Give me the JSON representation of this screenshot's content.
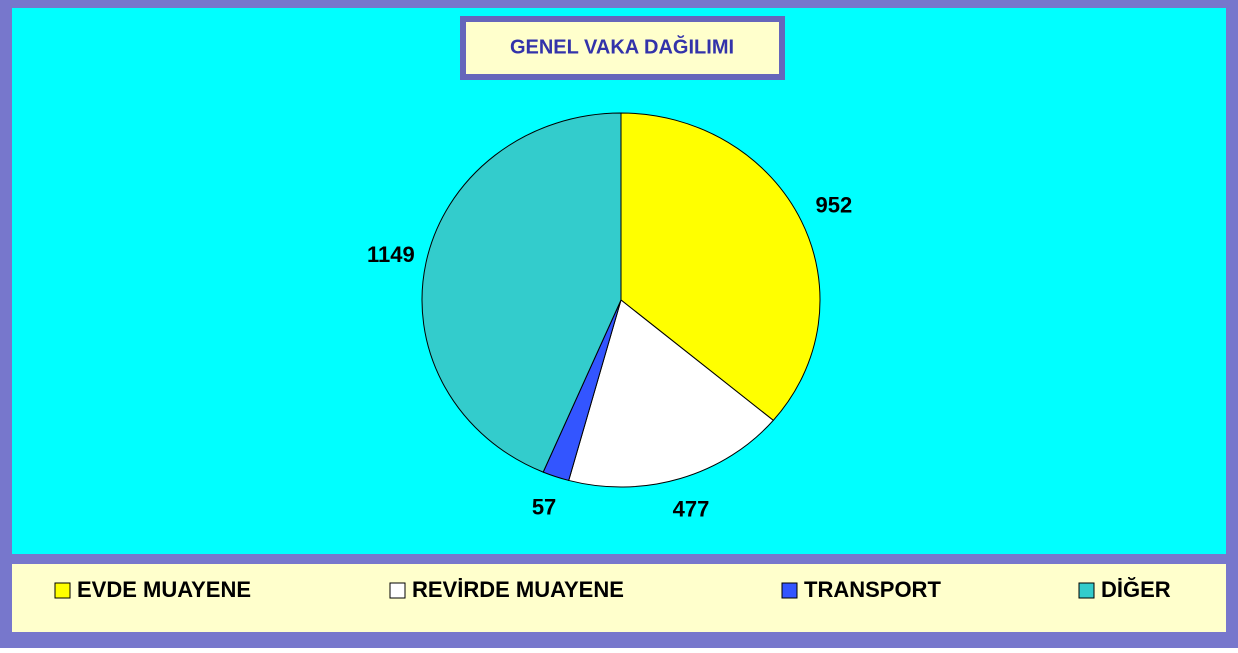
{
  "chart_data": {
    "type": "pie",
    "title": "GENEL VAKA DAĞILIMI",
    "categories": [
      "EVDE MUAYENE",
      "REVİRDE MUAYENE",
      "TRANSPORT",
      "DİĞER"
    ],
    "values": [
      952,
      477,
      57,
      1149
    ],
    "colors": [
      "#ffff00",
      "#ffffff",
      "#3355ff",
      "#33cccc"
    ],
    "legend": "bottom"
  }
}
